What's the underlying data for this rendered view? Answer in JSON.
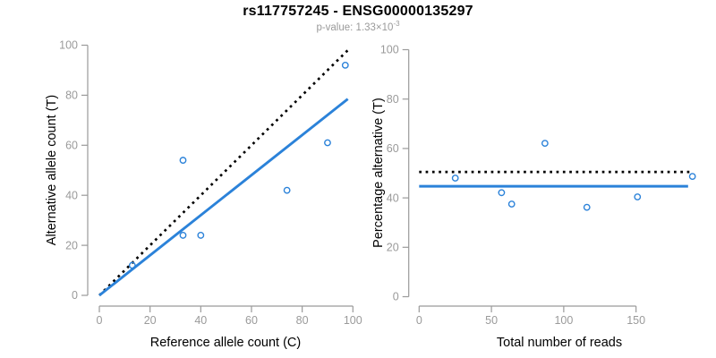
{
  "header": {
    "title": "rs117757245 - ENSG00000135297",
    "subtitle_prefix": "p-value: 1.33×10",
    "subtitle_exponent": "-3"
  },
  "colors": {
    "accent_blue": "#2b82d9",
    "axis_gray": "#9a9a9a",
    "text_black": "#000000"
  },
  "chart_data": [
    {
      "type": "scatter",
      "title": "",
      "xlabel": "Reference allele count (C)",
      "ylabel": "Alternative allele count (T)",
      "xlim": [
        0,
        100
      ],
      "ylim": [
        0,
        100
      ],
      "xticks": [
        0,
        20,
        40,
        60,
        80,
        100
      ],
      "yticks": [
        0,
        20,
        40,
        60,
        80,
        100
      ],
      "grid": false,
      "legend": "none",
      "points": [
        [
          13,
          12
        ],
        [
          33,
          24
        ],
        [
          33,
          54
        ],
        [
          40,
          24
        ],
        [
          74,
          42
        ],
        [
          90,
          61
        ],
        [
          97,
          92
        ]
      ],
      "lines": [
        {
          "name": "identity-line",
          "style": "dotted",
          "color": "black",
          "x1": 0,
          "y1": 0,
          "x2": 98,
          "y2": 98
        },
        {
          "name": "regression-line",
          "style": "solid",
          "color": "blue",
          "x1": 0,
          "y1": 0,
          "x2": 98,
          "y2": 78.5
        }
      ]
    },
    {
      "type": "scatter",
      "title": "",
      "xlabel": "Total number of reads",
      "ylabel": "Percentage alternative (T)",
      "xlim": [
        0,
        190
      ],
      "ylim": [
        0,
        100
      ],
      "xticks": [
        0,
        50,
        100,
        150
      ],
      "yticks": [
        0,
        20,
        40,
        60,
        80,
        100
      ],
      "grid": false,
      "legend": "none",
      "points": [
        [
          25,
          48.0
        ],
        [
          57,
          42.1
        ],
        [
          64,
          37.5
        ],
        [
          87,
          62.1
        ],
        [
          116,
          36.2
        ],
        [
          151,
          40.4
        ],
        [
          189,
          48.7
        ]
      ],
      "lines": [
        {
          "name": "reference-line-50pct",
          "style": "dotted",
          "color": "black",
          "x1": 0,
          "y1": 50.5,
          "x2": 188,
          "y2": 50.5
        },
        {
          "name": "mean-line",
          "style": "solid",
          "color": "blue",
          "x1": 0,
          "y1": 44.7,
          "x2": 186,
          "y2": 44.7
        }
      ]
    }
  ]
}
